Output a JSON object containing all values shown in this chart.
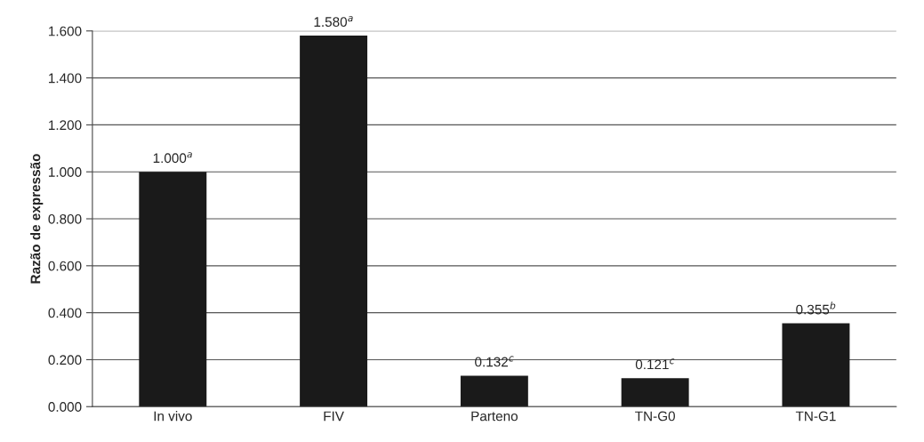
{
  "chart_data": {
    "type": "bar",
    "ylabel": "Razão de expressão",
    "categories": [
      "In vivo",
      "FIV",
      "Parteno",
      "TN-G0",
      "TN-G1"
    ],
    "values": [
      1.0,
      1.58,
      0.132,
      0.121,
      0.355
    ],
    "value_labels": [
      "1.000$^{a}$",
      "1.580$^{a}$",
      "0.132$^{c}$",
      "0.121$^{c}$",
      "0.355$^{b}$"
    ],
    "color": "#1a1a1a",
    "ylim": [
      0,
      1.6
    ],
    "yticks": [
      {
        "value": 0,
        "label": "0.000"
      },
      {
        "value": 0.2,
        "label": "0.200"
      },
      {
        "value": 0.4,
        "label": "0.400"
      },
      {
        "value": 0.6,
        "label": "0.600"
      },
      {
        "value": 0.8,
        "label": "0.800"
      },
      {
        "value": 1.0,
        "label": "1.000"
      },
      {
        "value": 1.2,
        "label": "1.200"
      },
      {
        "value": 1.4,
        "label": "1.400"
      },
      {
        "value": 1.6,
        "label": "1.600"
      }
    ],
    "grid": "y"
  }
}
